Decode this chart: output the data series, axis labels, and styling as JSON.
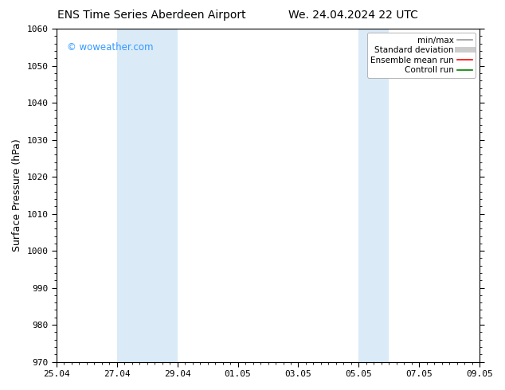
{
  "title_left": "ENS Time Series Aberdeen Airport",
  "title_right": "We. 24.04.2024 22 UTC",
  "ylabel": "Surface Pressure (hPa)",
  "ylim": [
    970,
    1060
  ],
  "yticks": [
    970,
    980,
    990,
    1000,
    1010,
    1020,
    1030,
    1040,
    1050,
    1060
  ],
  "xtick_labels": [
    "25.04",
    "27.04",
    "29.04",
    "01.05",
    "03.05",
    "05.05",
    "07.05",
    "09.05"
  ],
  "xtick_positions": [
    0,
    2,
    4,
    6,
    8,
    10,
    12,
    14
  ],
  "x_total": 14.0,
  "shaded_bands": [
    {
      "x_start": 2.0,
      "x_end": 4.0
    },
    {
      "x_start": 10.0,
      "x_end": 11.0
    }
  ],
  "shaded_color": "#daeaf7",
  "watermark_text": "© woweather.com",
  "watermark_color": "#3399ff",
  "legend_items": [
    {
      "label": "min/max",
      "color": "#999999",
      "lw": 1.2
    },
    {
      "label": "Standard deviation",
      "color": "#cccccc",
      "lw": 5
    },
    {
      "label": "Ensemble mean run",
      "color": "#ff0000",
      "lw": 1.2
    },
    {
      "label": "Controll run",
      "color": "#008000",
      "lw": 1.2
    }
  ],
  "bg_color": "#ffffff",
  "title_fontsize": 10,
  "ylabel_fontsize": 9,
  "tick_fontsize": 8,
  "legend_fontsize": 7.5,
  "watermark_fontsize": 8.5
}
